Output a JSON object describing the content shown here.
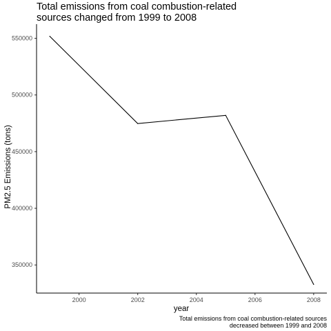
{
  "chart_data": {
    "type": "line",
    "title_lines": [
      "Total emissions from coal combustion-related",
      "sources changed from 1999 to 2008"
    ],
    "xlabel": "year",
    "ylabel": "PM2.5 Emissions (tons)",
    "caption_lines": [
      "Total emissions from coal combustion-related sources",
      "decreased between 1999 and 2008"
    ],
    "x": [
      1999,
      2002,
      2005,
      2008
    ],
    "values": [
      551800,
      474800,
      482000,
      332800
    ],
    "xlim": [
      1998.55,
      2008.45
    ],
    "ylim": [
      325200,
      562500
    ],
    "xticks": [
      2000,
      2002,
      2004,
      2006,
      2008
    ],
    "yticks": [
      350000,
      400000,
      450000,
      500000,
      550000
    ],
    "grid": false,
    "line_color": "#000000"
  }
}
